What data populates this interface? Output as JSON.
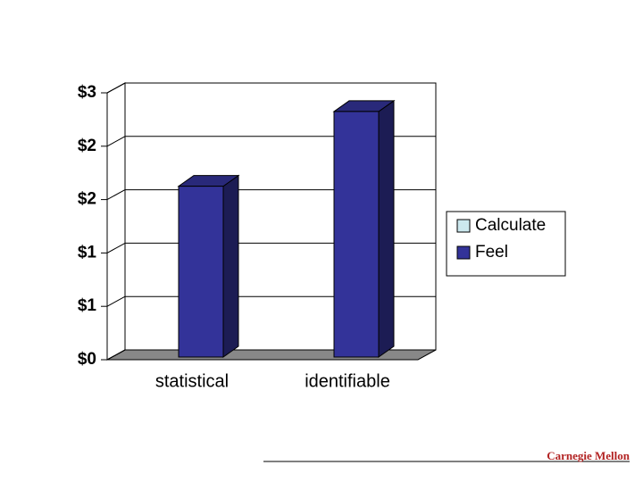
{
  "chart_data": {
    "type": "bar3d",
    "categories": [
      "statistical",
      "identifiable"
    ],
    "series": [
      {
        "name": "Calculate",
        "color": "#cce8ee",
        "values": [
          null,
          null
        ]
      },
      {
        "name": "Feel",
        "color": "#333399",
        "values": [
          1.6,
          2.3
        ]
      }
    ],
    "ylim": [
      0,
      2.5
    ],
    "yticks": [
      {
        "value": 0,
        "label": "$0"
      },
      {
        "value": 0.5,
        "label": "$1"
      },
      {
        "value": 1,
        "label": "$1"
      },
      {
        "value": 1.5,
        "label": "$2"
      },
      {
        "value": 2,
        "label": "$2"
      },
      {
        "value": 2.5,
        "label": "$3"
      }
    ],
    "grid": true,
    "legend": "right"
  },
  "footer": {
    "logo": "Carnegie Mellon"
  }
}
